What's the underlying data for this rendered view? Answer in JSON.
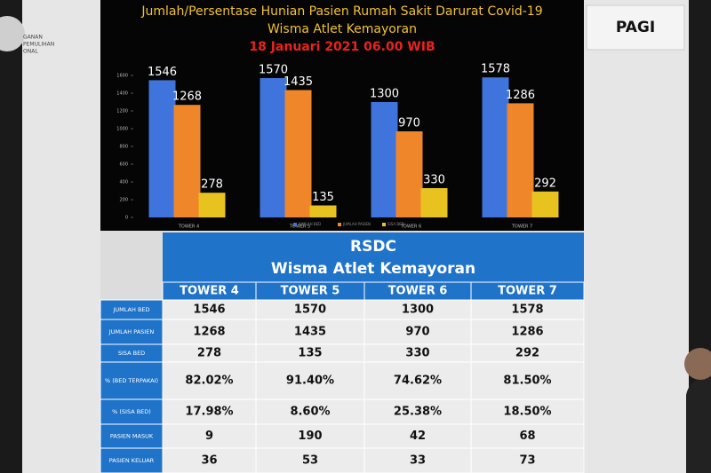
{
  "logo_text": [
    "GANAN",
    "PEMULIHAN",
    "ONAL"
  ],
  "badge": "PAGI",
  "chart_data": {
    "type": "bar",
    "title": "Jumlah/Persentase Hunian Pasien Rumah Sakit Darurat Covid-19",
    "subtitle": "Wisma Atlet Kemayoran",
    "date": "18 Januari 2021 06.00 WIB",
    "categories": [
      "TOWER 4",
      "TOWER 5",
      "TOWER 6",
      "TOWER 7"
    ],
    "series": [
      {
        "name": "JUMLAH BED",
        "color": "#3f74dc",
        "values": [
          1546,
          1570,
          1300,
          1578
        ]
      },
      {
        "name": "JUMLAH PASIEN",
        "color": "#f0862a",
        "values": [
          1268,
          1435,
          970,
          1286
        ]
      },
      {
        "name": "SISA BED",
        "color": "#e8c21e",
        "values": [
          278,
          135,
          330,
          292
        ]
      }
    ],
    "ylim": [
      0,
      1600
    ],
    "yticks": [
      0,
      200,
      400,
      600,
      800,
      1000,
      1200,
      1400,
      1600
    ],
    "grid": false
  },
  "table": {
    "title": "RSDC",
    "subtitle": "Wisma Atlet Kemayoran",
    "columns": [
      "TOWER 4",
      "TOWER 5",
      "TOWER 6",
      "TOWER 7"
    ],
    "rows": [
      [
        "JUMLAH BED",
        "1546",
        "1570",
        "1300",
        "1578"
      ],
      [
        "JUMLAH PASIEN",
        "1268",
        "1435",
        "970",
        "1286"
      ],
      [
        "SISA BED",
        "278",
        "135",
        "330",
        "292"
      ],
      [
        "% (BED TERPAKAI)",
        "82.02%",
        "91.40%",
        "74.62%",
        "81.50%"
      ],
      [
        "% (SISA BED)",
        "17.98%",
        "8.60%",
        "25.38%",
        "18.50%"
      ],
      [
        "PASIEN MASUK",
        "9",
        "190",
        "42",
        "68"
      ],
      [
        "PASIEN KELUAR",
        "36",
        "53",
        "33",
        "73"
      ]
    ]
  }
}
